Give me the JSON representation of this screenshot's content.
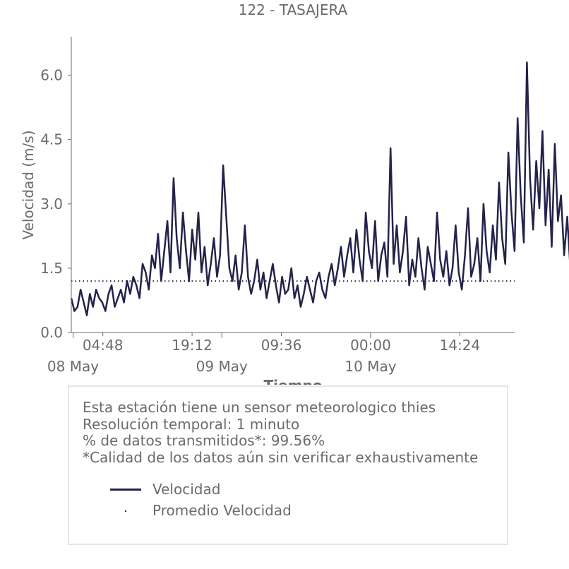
{
  "chart_data": {
    "type": "line",
    "title": "122 - TASAJERA",
    "xlabel": "Tiempo",
    "ylabel": "Velocidad (m/s)",
    "ylim": [
      0,
      6.9
    ],
    "yticks": [
      "0.0",
      "1.5",
      "3.0",
      "4.5",
      "6.0"
    ],
    "ytick_values": [
      0,
      1.5,
      3.0,
      4.5,
      6.0
    ],
    "xlim": [
      "2024-05-07 23:43",
      "2024-05-10 23:14"
    ],
    "xticks": [
      {
        "at": "2024-05-08 04:48",
        "label": "04:48"
      },
      {
        "at": "2024-05-08 19:12",
        "label": "19:12"
      },
      {
        "at": "2024-05-09 09:36",
        "label": "09:36"
      },
      {
        "at": "2024-05-10 00:00",
        "label": "00:00"
      },
      {
        "at": "2024-05-10 14:24",
        "label": "14:24"
      }
    ],
    "date_labels": [
      {
        "at": "2024-05-08 00:00",
        "label": "08 May"
      },
      {
        "at": "2024-05-09 00:00",
        "label": "09 May"
      },
      {
        "at": "2024-05-10 00:00",
        "label": "10 May"
      }
    ],
    "grid": false,
    "colors": {
      "series": "#23234a",
      "axis": "#6b6b6b"
    },
    "series": [
      {
        "name": "Velocidad",
        "style": "line",
        "x_start": "2024-05-07 23:43",
        "x_step_minutes": 30,
        "values": [
          0.8,
          0.5,
          0.6,
          1.0,
          0.7,
          0.4,
          0.9,
          0.6,
          1.0,
          0.8,
          0.7,
          0.5,
          0.9,
          1.1,
          0.6,
          0.8,
          1.0,
          0.7,
          1.2,
          0.9,
          1.3,
          1.1,
          0.8,
          1.6,
          1.4,
          1.0,
          1.8,
          1.5,
          2.3,
          1.2,
          1.9,
          2.6,
          1.4,
          3.6,
          2.2,
          1.5,
          2.8,
          1.9,
          1.2,
          2.4,
          1.7,
          2.8,
          1.4,
          2.0,
          1.1,
          1.6,
          2.2,
          1.3,
          1.8,
          3.9,
          2.7,
          1.5,
          1.2,
          1.8,
          1.0,
          1.4,
          2.5,
          1.3,
          0.9,
          1.2,
          1.7,
          1.0,
          1.4,
          0.8,
          1.2,
          1.6,
          1.1,
          0.7,
          1.3,
          0.9,
          1.0,
          1.5,
          0.8,
          1.1,
          0.6,
          0.9,
          1.3,
          1.0,
          0.7,
          1.2,
          1.4,
          1.0,
          0.8,
          1.3,
          1.6,
          1.1,
          1.5,
          2.0,
          1.3,
          1.8,
          2.2,
          1.4,
          2.4,
          1.7,
          1.2,
          2.8,
          1.9,
          1.5,
          2.6,
          1.2,
          1.8,
          2.1,
          1.3,
          4.3,
          1.6,
          2.5,
          1.4,
          1.9,
          2.7,
          1.1,
          1.7,
          1.3,
          2.2,
          1.5,
          1.0,
          2.0,
          1.6,
          1.2,
          2.8,
          1.7,
          1.3,
          1.9,
          1.1,
          1.5,
          2.5,
          1.4,
          1.0,
          1.8,
          2.9,
          1.3,
          1.6,
          2.2,
          1.2,
          3.0,
          1.9,
          1.4,
          2.5,
          1.7,
          3.5,
          2.2,
          1.6,
          4.2,
          2.8,
          1.9,
          5.0,
          3.2,
          2.1,
          6.3,
          3.6,
          2.4,
          4.0,
          2.9,
          4.7,
          2.5,
          3.8,
          2.0,
          4.4,
          2.6,
          3.2,
          1.8,
          2.7,
          1.5,
          3.0,
          1.9,
          2.2,
          1.4,
          2.0,
          1.6,
          1.2,
          2.3,
          1.5,
          1.8,
          2.1
        ]
      },
      {
        "name": "Promedio Velocidad",
        "style": "dotted",
        "value": 1.2
      }
    ]
  },
  "info": {
    "lines": [
      "Esta estación tiene un sensor meteorologico thies",
      "Resolución temporal: 1 minuto",
      "% de datos transmitidos*: 99.56%",
      "*Calidad de los datos aún sin verificar exhaustivamente"
    ]
  }
}
